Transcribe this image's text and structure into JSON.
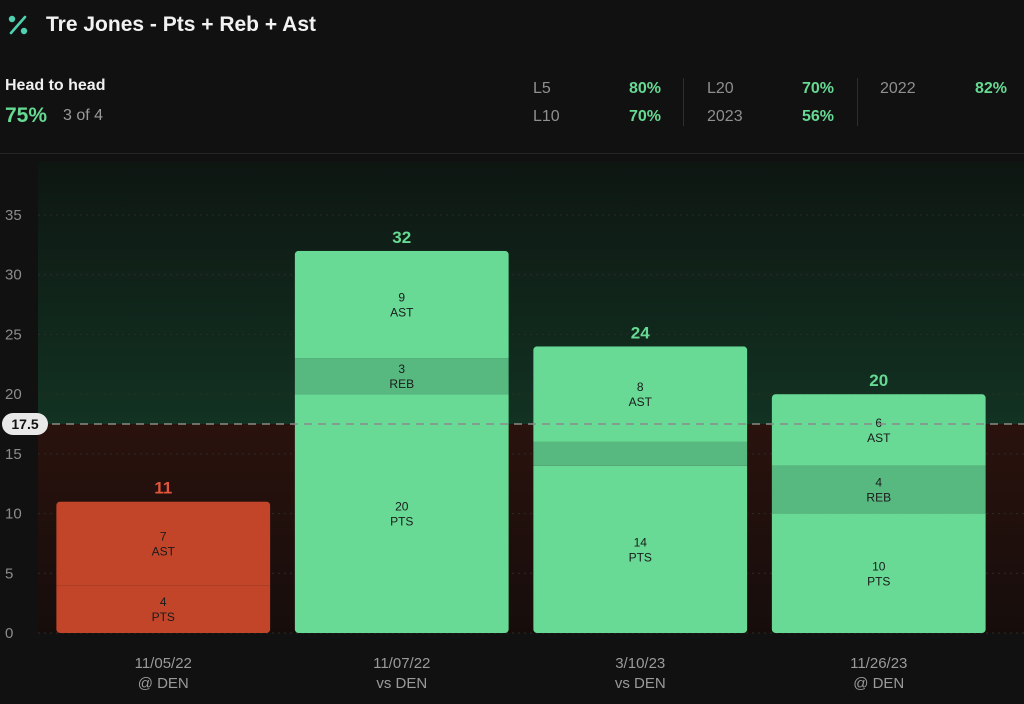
{
  "header": {
    "icon": "percent-icon",
    "title": "Tre Jones - Pts + Reb + Ast"
  },
  "head_to_head": {
    "label": "Head to head",
    "percent": "75%",
    "record": "3 of 4"
  },
  "splits": [
    {
      "label": "L5",
      "value": "80%"
    },
    {
      "label": "L10",
      "value": "70%"
    },
    {
      "label": "L20",
      "value": "70%"
    },
    {
      "label": "2023",
      "value": "56%"
    },
    {
      "label": "2022",
      "value": "82%"
    }
  ],
  "colors": {
    "hit": "#68da95",
    "hit_mid": "#58b980",
    "miss": "#c2452a",
    "miss_total_label": "#e0553b",
    "hit_total_label": "#66d993",
    "line": "#8a8a8a"
  },
  "chart_data": {
    "type": "bar",
    "stacked": true,
    "line": 17.5,
    "line_label": "17.5",
    "ylim": [
      0,
      35
    ],
    "yticks": [
      0,
      5,
      10,
      15,
      20,
      25,
      30,
      35
    ],
    "games": [
      {
        "date": "11/05/22",
        "opp": "@ DEN",
        "total": 11,
        "hit": false,
        "segments": [
          {
            "stat": "PTS",
            "value": 4
          },
          {
            "stat": "REB",
            "value": 0
          },
          {
            "stat": "AST",
            "value": 7
          }
        ]
      },
      {
        "date": "11/07/22",
        "opp": "vs DEN",
        "total": 32,
        "hit": true,
        "segments": [
          {
            "stat": "PTS",
            "value": 20
          },
          {
            "stat": "REB",
            "value": 3
          },
          {
            "stat": "AST",
            "value": 9
          }
        ]
      },
      {
        "date": "3/10/23",
        "opp": "vs DEN",
        "total": 24,
        "hit": true,
        "segments": [
          {
            "stat": "PTS",
            "value": 14
          },
          {
            "stat": "REB",
            "value": 2
          },
          {
            "stat": "AST",
            "value": 8
          }
        ]
      },
      {
        "date": "11/26/23",
        "opp": "@ DEN",
        "total": 20,
        "hit": true,
        "segments": [
          {
            "stat": "PTS",
            "value": 10
          },
          {
            "stat": "REB",
            "value": 4
          },
          {
            "stat": "AST",
            "value": 6
          }
        ]
      }
    ]
  }
}
